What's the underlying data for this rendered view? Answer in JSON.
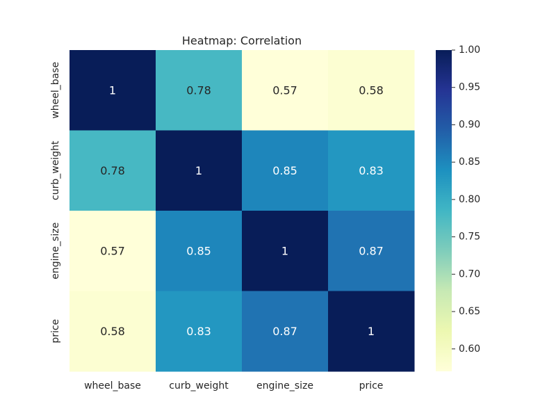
{
  "chart_data": {
    "type": "heatmap",
    "title": "Heatmap: Correlation",
    "x_categories": [
      "wheel_base",
      "curb_weight",
      "engine_size",
      "price"
    ],
    "y_categories": [
      "wheel_base",
      "curb_weight",
      "engine_size",
      "price"
    ],
    "values": [
      [
        1,
        0.78,
        0.57,
        0.58
      ],
      [
        0.78,
        1,
        0.85,
        0.83
      ],
      [
        0.57,
        0.85,
        1,
        0.87
      ],
      [
        0.58,
        0.83,
        0.87,
        1
      ]
    ],
    "cell_labels": [
      [
        "1",
        "0.78",
        "0.57",
        "0.58"
      ],
      [
        "0.78",
        "1",
        "0.85",
        "0.83"
      ],
      [
        "0.57",
        "0.85",
        "1",
        "0.87"
      ],
      [
        "0.58",
        "0.83",
        "0.87",
        "1"
      ]
    ],
    "colormap": "YlGnBu",
    "colorbar": {
      "min": 0.57,
      "max": 1.0,
      "ticks": [
        0.6,
        0.65,
        0.7,
        0.75,
        0.8,
        0.85,
        0.9,
        0.95,
        1.0
      ],
      "tick_labels": [
        "0.60",
        "0.65",
        "0.70",
        "0.75",
        "0.80",
        "0.85",
        "0.90",
        "0.95",
        "1.00"
      ]
    },
    "grid": false,
    "annotated": true
  }
}
